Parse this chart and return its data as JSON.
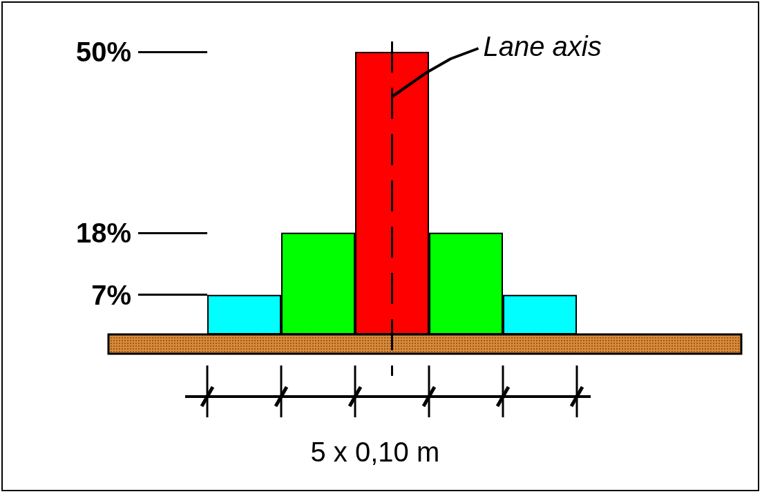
{
  "chart_data": {
    "type": "bar",
    "categories": [
      null,
      null,
      null,
      null,
      null
    ],
    "values": [
      7,
      18,
      50,
      18,
      7
    ],
    "colors": [
      "#00ffff",
      "#00ff00",
      "#ff0000",
      "#00ff00",
      "#00ffff"
    ],
    "ylim": [
      0,
      50
    ],
    "yticks": [
      {
        "value": 7,
        "label": "7%"
      },
      {
        "value": 18,
        "label": "18%"
      },
      {
        "value": 50,
        "label": "50%"
      }
    ],
    "annotations": [
      "Lane axis",
      "5 x 0,10 m"
    ],
    "grid": false
  }
}
